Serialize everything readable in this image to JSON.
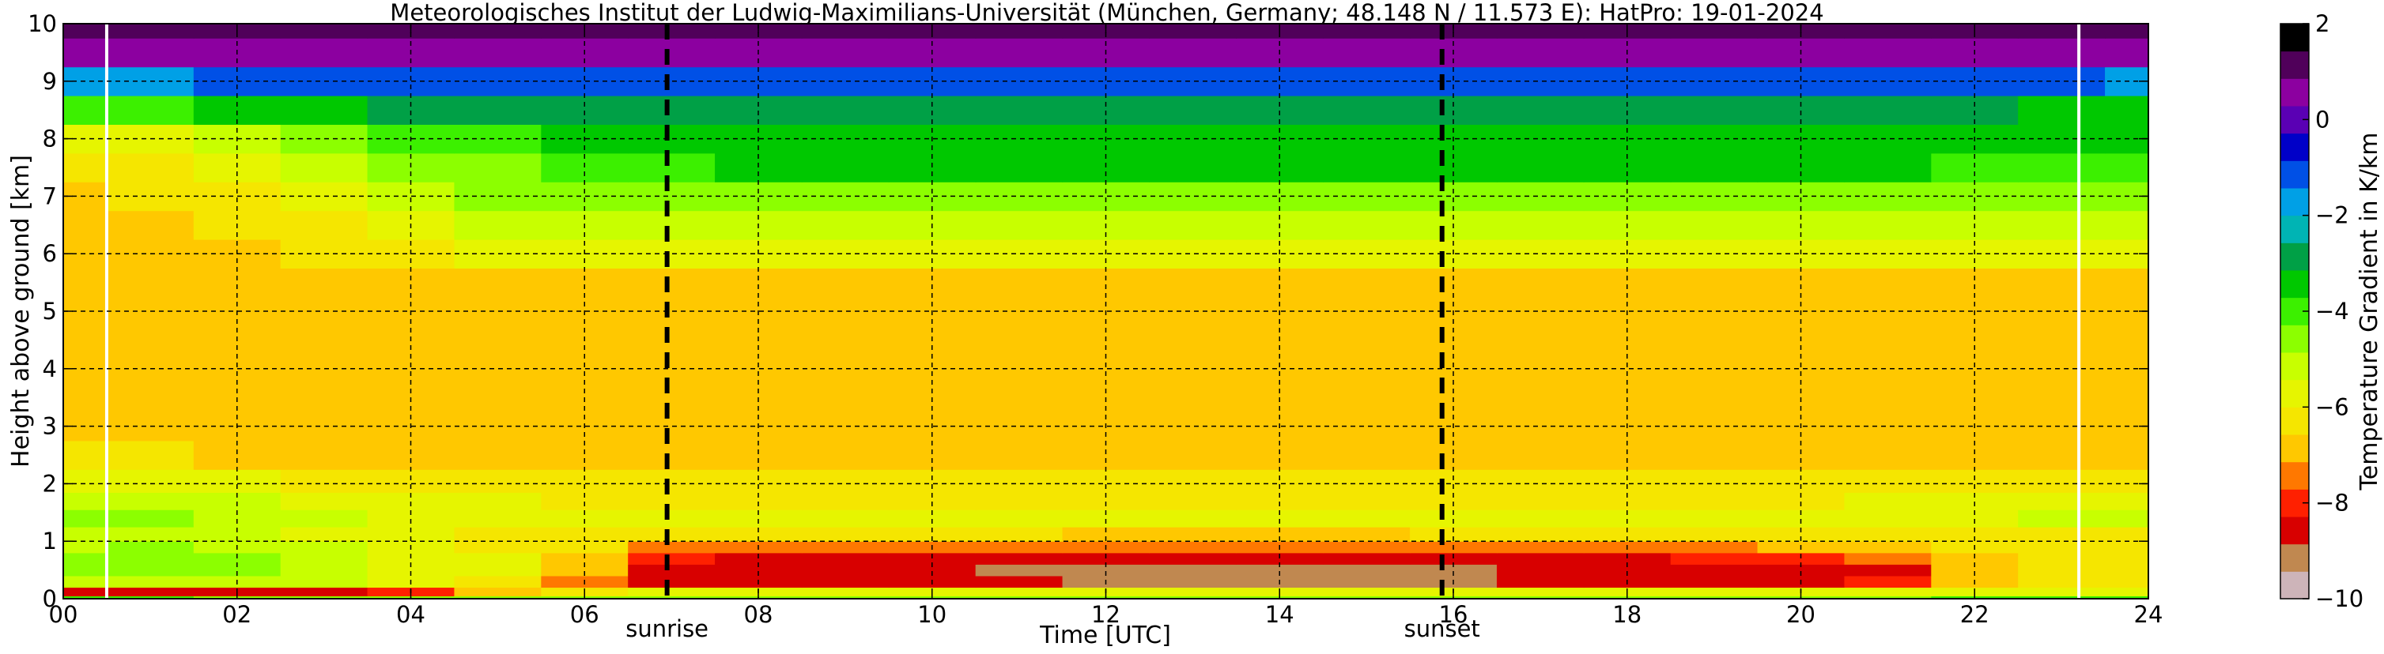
{
  "chart_data": {
    "type": "heatmap",
    "title": "Meteorologisches Institut der Ludwig-Maximilians-Universität (München, Germany; 48.148 N / 11.573 E):    HatPro: 19-01-2024",
    "xlabel": "Time [UTC]",
    "ylabel": "Height above ground [km]",
    "xlim": [
      0,
      24
    ],
    "ylim": [
      0,
      10
    ],
    "x_ticks": [
      "00",
      "02",
      "04",
      "06",
      "08",
      "10",
      "12",
      "14",
      "16",
      "18",
      "20",
      "22",
      "24"
    ],
    "y_ticks": [
      "0",
      "1",
      "2",
      "3",
      "4",
      "5",
      "6",
      "7",
      "8",
      "9",
      "10"
    ],
    "grid": true,
    "colorbar": {
      "label": "Temperature Gradient in K/km",
      "range": [
        -10,
        2
      ],
      "ticks": [
        "2",
        "0",
        "−2",
        "−4",
        "−6",
        "−8",
        "−10"
      ],
      "colors": [
        "#cdb4b9",
        "#c08850",
        "#d80000",
        "#ff2000",
        "#ff7800",
        "#ffc800",
        "#f5e600",
        "#e6f500",
        "#c8ff00",
        "#8cff00",
        "#3cf000",
        "#00c800",
        "#00a046",
        "#00b4b4",
        "#00a0e6",
        "#0050e6",
        "#0000c8",
        "#5a00b4",
        "#8c00a0",
        "#50005a",
        "#000000"
      ]
    },
    "markers": [
      {
        "x": 6.95,
        "label": "sunrise"
      },
      {
        "x": 15.87,
        "label": "sunset"
      }
    ],
    "white_lines_x": [
      0.5,
      23.2
    ],
    "height_km": [
      0.0,
      0.1,
      0.3,
      0.5,
      0.7,
      0.9,
      1.1,
      1.4,
      1.7,
      2.0,
      2.5,
      3.0,
      3.5,
      4.0,
      4.5,
      5.0,
      5.5,
      6.0,
      6.5,
      7.0,
      7.5,
      8.0,
      8.5,
      9.0,
      9.5,
      10.0
    ],
    "time_utc": [
      0,
      1,
      2,
      3,
      4,
      5,
      6,
      7,
      8,
      9,
      10,
      11,
      12,
      13,
      14,
      15,
      16,
      17,
      18,
      19,
      20,
      21,
      22,
      23,
      24
    ],
    "values_by_height": [
      [
        -4.2,
        -4.2,
        -4.3,
        -4.3,
        -4.3,
        -4.4,
        -4.4,
        -4.4,
        -4.5,
        -4.5,
        -4.5,
        -4.5,
        -4.5,
        -4.5,
        -4.5,
        -4.5,
        -4.5,
        -4.4,
        -4.4,
        -4.3,
        -4.3,
        -4.3,
        -4.2,
        -4.2,
        -4.2
      ],
      [
        -8.5,
        -8.6,
        -8.6,
        -8.5,
        -7.8,
        -6.8,
        -6.2,
        -6.0,
        -6.0,
        -6.0,
        -6.0,
        -6.0,
        -6.0,
        -6.0,
        -6.0,
        -6.0,
        -6.0,
        -6.0,
        -6.0,
        -6.0,
        -6.0,
        -6.0,
        -5.8,
        -5.6,
        -5.5
      ],
      [
        -5.2,
        -5.0,
        -5.0,
        -5.3,
        -5.8,
        -6.2,
        -7.2,
        -8.3,
        -8.5,
        -8.6,
        -8.7,
        -8.8,
        -8.9,
        -8.9,
        -9.0,
        -9.0,
        -8.9,
        -8.8,
        -8.7,
        -8.6,
        -8.5,
        -8.2,
        -7.0,
        -6.5,
        -6.3
      ],
      [
        -4.8,
        -4.6,
        -4.5,
        -4.9,
        -5.5,
        -6.0,
        -7.0,
        -8.4,
        -8.7,
        -8.8,
        -8.8,
        -8.9,
        -9.0,
        -9.0,
        -9.0,
        -9.0,
        -8.9,
        -8.8,
        -8.7,
        -8.6,
        -8.5,
        -8.3,
        -7.0,
        -6.5,
        -6.3
      ],
      [
        -4.7,
        -4.5,
        -4.6,
        -5.0,
        -5.6,
        -6.0,
        -6.6,
        -8.0,
        -8.3,
        -8.4,
        -8.5,
        -8.5,
        -8.6,
        -8.6,
        -8.6,
        -8.6,
        -8.5,
        -8.4,
        -8.3,
        -8.2,
        -8.0,
        -7.6,
        -6.7,
        -6.4,
        -6.3
      ],
      [
        -4.9,
        -4.8,
        -5.0,
        -5.3,
        -5.8,
        -6.1,
        -6.4,
        -7.2,
        -7.4,
        -7.5,
        -7.5,
        -7.5,
        -7.6,
        -7.6,
        -7.6,
        -7.6,
        -7.5,
        -7.4,
        -7.3,
        -7.2,
        -7.1,
        -6.9,
        -6.5,
        -6.3,
        -6.2
      ],
      [
        -5.1,
        -5.0,
        -5.3,
        -5.6,
        -6.0,
        -6.2,
        -6.4,
        -6.5,
        -6.5,
        -6.5,
        -6.5,
        -6.5,
        -6.6,
        -6.6,
        -6.6,
        -6.6,
        -6.5,
        -6.5,
        -6.5,
        -6.4,
        -6.4,
        -6.3,
        -6.2,
        -6.1,
        -6.1
      ],
      [
        -4.8,
        -4.7,
        -5.0,
        -5.3,
        -5.6,
        -5.8,
        -5.9,
        -5.9,
        -5.9,
        -5.9,
        -5.9,
        -5.9,
        -5.9,
        -5.9,
        -5.9,
        -5.9,
        -5.9,
        -5.9,
        -5.9,
        -5.9,
        -5.9,
        -5.8,
        -5.6,
        -5.4,
        -5.3
      ],
      [
        -5.0,
        -4.9,
        -5.2,
        -5.5,
        -5.8,
        -6.0,
        -6.1,
        -6.1,
        -6.1,
        -6.1,
        -6.1,
        -6.1,
        -6.1,
        -6.1,
        -6.1,
        -6.1,
        -6.1,
        -6.1,
        -6.1,
        -6.1,
        -6.1,
        -6.0,
        -5.8,
        -5.6,
        -5.5
      ],
      [
        -5.8,
        -5.8,
        -6.0,
        -6.2,
        -6.4,
        -6.5,
        -6.5,
        -6.5,
        -6.5,
        -6.5,
        -6.5,
        -6.5,
        -6.5,
        -6.5,
        -6.5,
        -6.5,
        -6.5,
        -6.5,
        -6.5,
        -6.5,
        -6.5,
        -6.4,
        -6.3,
        -6.2,
        -6.2
      ],
      [
        -6.5,
        -6.5,
        -6.6,
        -6.7,
        -6.8,
        -6.8,
        -6.8,
        -6.8,
        -6.8,
        -6.8,
        -6.8,
        -6.8,
        -6.8,
        -6.8,
        -6.8,
        -6.8,
        -6.8,
        -6.8,
        -6.8,
        -6.8,
        -6.8,
        -6.8,
        -6.7,
        -6.6,
        -6.6
      ],
      [
        -6.6,
        -6.6,
        -6.6,
        -6.6,
        -6.6,
        -6.6,
        -6.6,
        -6.6,
        -6.6,
        -6.6,
        -6.6,
        -6.6,
        -6.6,
        -6.6,
        -6.6,
        -6.6,
        -6.6,
        -6.6,
        -6.6,
        -6.6,
        -6.6,
        -6.6,
        -6.6,
        -6.6,
        -6.6
      ],
      [
        -6.8,
        -6.8,
        -6.8,
        -6.8,
        -6.8,
        -6.8,
        -6.8,
        -6.8,
        -6.8,
        -6.8,
        -6.8,
        -6.8,
        -6.8,
        -6.8,
        -6.8,
        -6.8,
        -6.8,
        -6.8,
        -6.8,
        -6.8,
        -6.8,
        -6.8,
        -6.8,
        -6.8,
        -6.8
      ],
      [
        -7.0,
        -7.0,
        -7.0,
        -7.0,
        -7.0,
        -7.0,
        -7.0,
        -7.0,
        -7.0,
        -7.0,
        -7.0,
        -7.0,
        -7.0,
        -7.0,
        -7.0,
        -7.0,
        -7.0,
        -7.0,
        -7.0,
        -7.0,
        -7.0,
        -7.0,
        -7.0,
        -7.0,
        -7.0
      ],
      [
        -6.9,
        -6.9,
        -6.9,
        -6.9,
        -6.9,
        -6.9,
        -6.9,
        -6.9,
        -6.9,
        -6.9,
        -6.9,
        -6.9,
        -6.9,
        -6.9,
        -6.9,
        -6.9,
        -6.9,
        -6.9,
        -6.9,
        -6.9,
        -6.9,
        -6.9,
        -6.9,
        -6.9,
        -6.9
      ],
      [
        -6.6,
        -6.6,
        -6.6,
        -6.6,
        -6.6,
        -6.6,
        -6.6,
        -6.6,
        -6.6,
        -6.6,
        -6.6,
        -6.6,
        -6.6,
        -6.6,
        -6.6,
        -6.6,
        -6.6,
        -6.6,
        -6.6,
        -6.6,
        -6.6,
        -6.6,
        -6.6,
        -6.6,
        -6.6
      ],
      [
        -6.9,
        -6.9,
        -6.8,
        -6.7,
        -6.6,
        -6.6,
        -6.6,
        -6.6,
        -6.6,
        -6.6,
        -6.6,
        -6.6,
        -6.6,
        -6.6,
        -6.6,
        -6.6,
        -6.6,
        -6.6,
        -6.6,
        -6.6,
        -6.6,
        -6.6,
        -6.6,
        -6.6,
        -6.6
      ],
      [
        -7.0,
        -7.0,
        -6.8,
        -6.5,
        -6.2,
        -6.0,
        -5.8,
        -5.7,
        -5.7,
        -5.7,
        -5.7,
        -5.7,
        -5.7,
        -5.7,
        -5.7,
        -5.7,
        -5.7,
        -5.7,
        -5.7,
        -5.7,
        -5.7,
        -5.7,
        -5.7,
        -5.7,
        -5.7
      ],
      [
        -6.8,
        -6.8,
        -6.5,
        -6.1,
        -5.7,
        -5.4,
        -5.2,
        -5.1,
        -5.1,
        -5.1,
        -5.1,
        -5.1,
        -5.1,
        -5.1,
        -5.1,
        -5.1,
        -5.1,
        -5.1,
        -5.1,
        -5.1,
        -5.1,
        -5.1,
        -5.1,
        -5.1,
        -5.1
      ],
      [
        -6.6,
        -6.5,
        -6.1,
        -5.6,
        -5.1,
        -4.7,
        -4.5,
        -4.3,
        -4.3,
        -4.3,
        -4.3,
        -4.3,
        -4.3,
        -4.3,
        -4.3,
        -4.3,
        -4.3,
        -4.3,
        -4.3,
        -4.3,
        -4.3,
        -4.3,
        -4.3,
        -4.4,
        -4.4
      ],
      [
        -6.3,
        -6.2,
        -5.7,
        -5.2,
        -4.7,
        -4.3,
        -4.0,
        -3.8,
        -3.7,
        -3.7,
        -3.7,
        -3.7,
        -3.7,
        -3.7,
        -3.7,
        -3.7,
        -3.7,
        -3.7,
        -3.7,
        -3.7,
        -3.7,
        -3.7,
        -3.8,
        -3.9,
        -3.9
      ],
      [
        -5.8,
        -5.7,
        -5.2,
        -4.6,
        -4.1,
        -3.8,
        -3.6,
        -3.5,
        -3.5,
        -3.5,
        -3.5,
        -3.5,
        -3.5,
        -3.5,
        -3.5,
        -3.5,
        -3.5,
        -3.5,
        -3.5,
        -3.5,
        -3.5,
        -3.5,
        -3.5,
        -3.6,
        -3.6
      ],
      [
        -4.0,
        -3.9,
        -3.6,
        -3.3,
        -3.1,
        -3.0,
        -2.9,
        -2.9,
        -2.9,
        -2.9,
        -2.9,
        -2.9,
        -2.9,
        -2.9,
        -2.9,
        -2.9,
        -2.9,
        -2.9,
        -2.9,
        -2.9,
        -2.9,
        -2.9,
        -3.0,
        -3.2,
        -3.3
      ],
      [
        -1.6,
        -1.5,
        -1.4,
        -1.3,
        -1.2,
        -1.2,
        -1.2,
        -1.2,
        -1.2,
        -1.2,
        -1.2,
        -1.2,
        -1.2,
        -1.2,
        -1.2,
        -1.2,
        -1.2,
        -1.2,
        -1.2,
        -1.2,
        -1.2,
        -1.2,
        -1.3,
        -1.4,
        -1.5
      ],
      [
        0.6,
        0.6,
        0.7,
        0.7,
        0.8,
        0.8,
        0.8,
        0.8,
        0.8,
        0.8,
        0.8,
        0.8,
        0.8,
        0.8,
        0.8,
        0.8,
        0.8,
        0.8,
        0.8,
        0.8,
        0.8,
        0.8,
        0.8,
        0.8,
        0.8
      ],
      [
        1.1,
        1.1,
        1.1,
        1.1,
        1.1,
        1.1,
        1.1,
        1.1,
        1.1,
        1.1,
        1.1,
        1.1,
        1.1,
        1.1,
        1.1,
        1.1,
        1.1,
        1.1,
        1.1,
        1.1,
        1.1,
        1.1,
        1.1,
        1.1,
        1.1
      ]
    ]
  }
}
